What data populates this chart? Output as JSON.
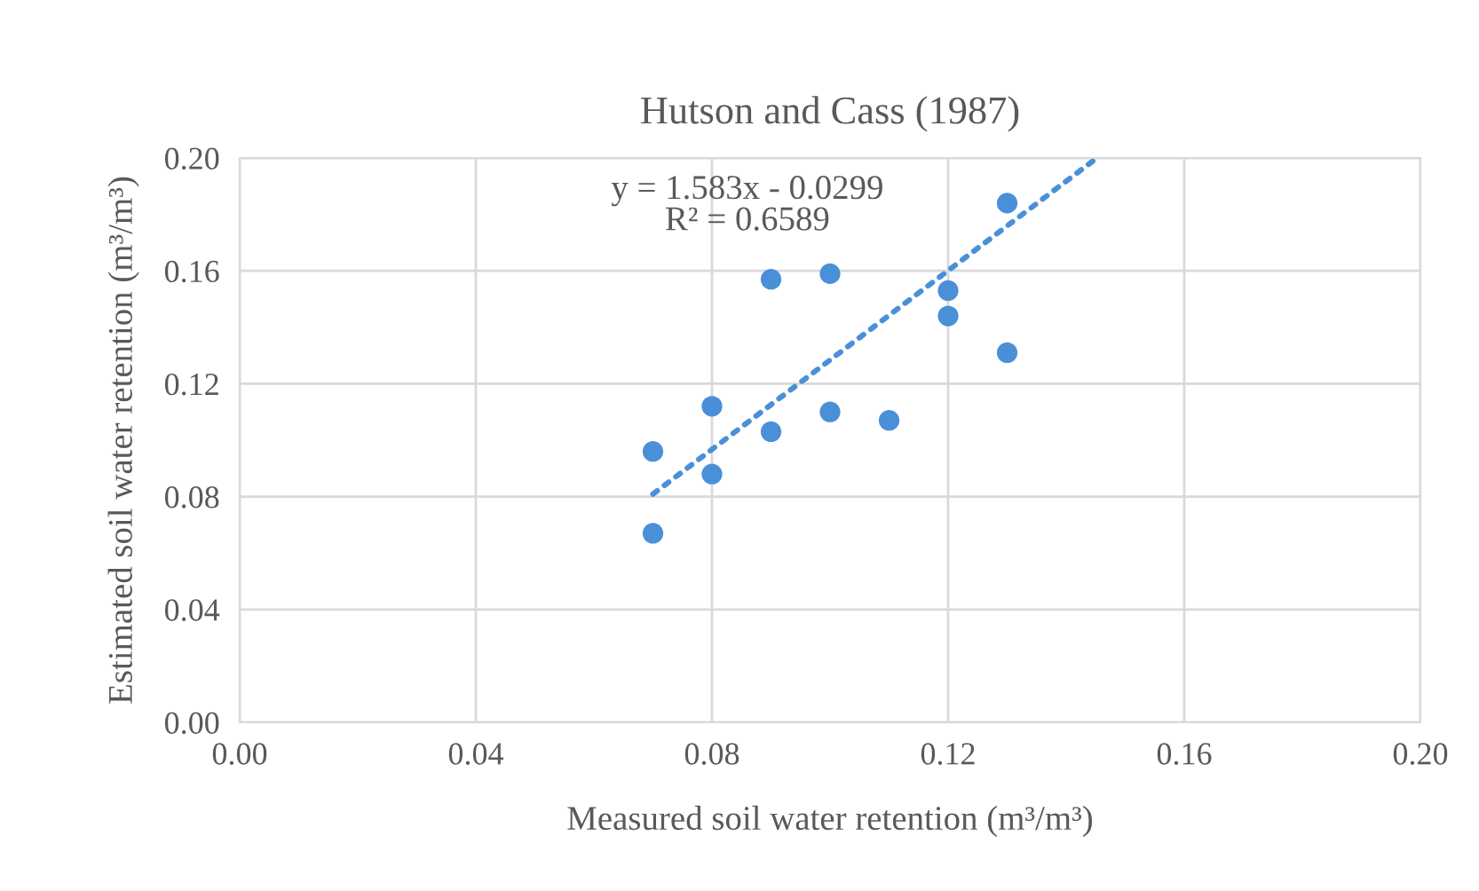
{
  "chart_data": {
    "type": "scatter",
    "title": "Hutson and Cass (1987)",
    "xlabel": "Measured soil water retention (m³/m³)",
    "ylabel": "Estimated soil water retention (m³/m³)",
    "x": [
      0.07,
      0.07,
      0.08,
      0.08,
      0.09,
      0.09,
      0.1,
      0.1,
      0.11,
      0.12,
      0.12,
      0.13,
      0.13
    ],
    "series": [
      {
        "color": "#4a90d9",
        "marker": "circle",
        "values": [
          0.096,
          0.067,
          0.112,
          0.088,
          0.157,
          0.103,
          0.159,
          0.11,
          0.107,
          0.153,
          0.144,
          0.184,
          0.131
        ]
      },
      {
        "type": "line",
        "color": "#4a90d9",
        "line_style": "dotted",
        "x": [
          0.07,
          0.1452
        ],
        "values": [
          0.0809,
          0.2
        ]
      }
    ],
    "annotations": [
      "y = 1.583x - 0.0299\nR² = 0.6589"
    ],
    "xlim": [
      0,
      0.2
    ],
    "ylim": [
      0,
      0.2
    ],
    "xticks": [
      {
        "value": 0,
        "label": "0.00"
      },
      {
        "value": 0.04,
        "label": "0.04"
      },
      {
        "value": 0.08,
        "label": "0.08"
      },
      {
        "value": 0.12,
        "label": "0.12"
      },
      {
        "value": 0.16,
        "label": "0.16"
      },
      {
        "value": 0.2,
        "label": "0.20"
      }
    ],
    "yticks": [
      {
        "value": 0,
        "label": "0.00"
      },
      {
        "value": 0.04,
        "label": "0.04"
      },
      {
        "value": 0.08,
        "label": "0.08"
      },
      {
        "value": 0.12,
        "label": "0.12"
      },
      {
        "value": 0.16,
        "label": "0.16"
      },
      {
        "value": 0.2,
        "label": "0.20"
      }
    ],
    "grid": true
  }
}
